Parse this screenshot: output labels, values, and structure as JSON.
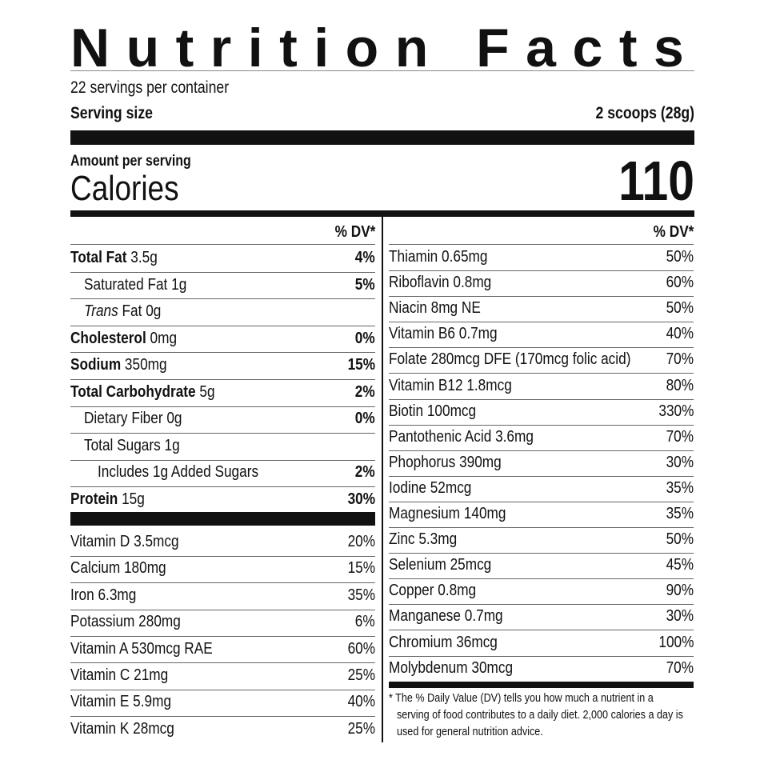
{
  "title": "Nutrition Facts",
  "servings_per_container": "22 servings per container",
  "serving_size_label": "Serving size",
  "serving_size_value": "2 scoops (28g)",
  "amount_per_serving": "Amount per serving",
  "calories_label": "Calories",
  "calories_value": "110",
  "dv_header": "% DV*",
  "macros": [
    {
      "bold": "Total Fat",
      "text": " 3.5g",
      "dv": "4%",
      "indent": 0
    },
    {
      "text": "Saturated Fat 1g",
      "dv": "5%",
      "indent": 1
    },
    {
      "italic": "Trans",
      "text": " Fat 0g",
      "dv": "",
      "indent": 1
    },
    {
      "bold": "Cholesterol",
      "text": " 0mg",
      "dv": "0%",
      "indent": 0
    },
    {
      "bold": "Sodium",
      "text": " 350mg",
      "dv": "15%",
      "indent": 0
    },
    {
      "bold": "Total Carbohydrate",
      "text": " 5g",
      "dv": "2%",
      "indent": 0
    },
    {
      "text": "Dietary Fiber 0g",
      "dv": "0%",
      "indent": 1
    },
    {
      "text": "Total Sugars 1g",
      "dv": "",
      "indent": 1
    },
    {
      "text": "Includes 1g Added Sugars",
      "dv": "2%",
      "indent": 2
    },
    {
      "bold": "Protein",
      "text": " 15g",
      "dv": "30%",
      "indent": 0
    }
  ],
  "vitamins_left": [
    {
      "text": "Vitamin D 3.5mcg",
      "dv": "20%"
    },
    {
      "text": "Calcium 180mg",
      "dv": "15%"
    },
    {
      "text": "Iron 6.3mg",
      "dv": "35%"
    },
    {
      "text": "Potassium 280mg",
      "dv": "6%"
    },
    {
      "text": "Vitamin A 530mcg RAE",
      "dv": "60%"
    },
    {
      "text": "Vitamin C 21mg",
      "dv": "25%"
    },
    {
      "text": "Vitamin E 5.9mg",
      "dv": "40%"
    },
    {
      "text": "Vitamin K 28mcg",
      "dv": "25%"
    }
  ],
  "vitamins_right": [
    {
      "text": "Thiamin 0.65mg",
      "dv": "50%"
    },
    {
      "text": "Riboflavin 0.8mg",
      "dv": "60%"
    },
    {
      "text": "Niacin 8mg NE",
      "dv": "50%"
    },
    {
      "text": "Vitamin B6 0.7mg",
      "dv": "40%"
    },
    {
      "text": "Folate 280mcg DFE (170mcg folic acid)",
      "dv": "70%"
    },
    {
      "text": "Vitamin B12 1.8mcg",
      "dv": "80%"
    },
    {
      "text": "Biotin 100mcg",
      "dv": "330%"
    },
    {
      "text": "Pantothenic Acid 3.6mg",
      "dv": "70%"
    },
    {
      "text": "Phophorus 390mg",
      "dv": "30%"
    },
    {
      "text": "Iodine 52mcg",
      "dv": "35%"
    },
    {
      "text": "Magnesium 140mg",
      "dv": "35%"
    },
    {
      "text": "Zinc 5.3mg",
      "dv": "50%"
    },
    {
      "text": "Selenium 25mcg",
      "dv": "45%"
    },
    {
      "text": "Copper 0.8mg",
      "dv": "90%"
    },
    {
      "text": "Manganese 0.7mg",
      "dv": "30%"
    },
    {
      "text": "Chromium 36mcg",
      "dv": "100%"
    },
    {
      "text": "Molybdenum 30mcg",
      "dv": "70%"
    }
  ],
  "footnote": [
    "* The % Daily Value (DV) tells you how much a nutrient in a",
    "serving of food contributes to a daily diet. 2,000 calories a day is",
    "used for general nutrition advice."
  ]
}
